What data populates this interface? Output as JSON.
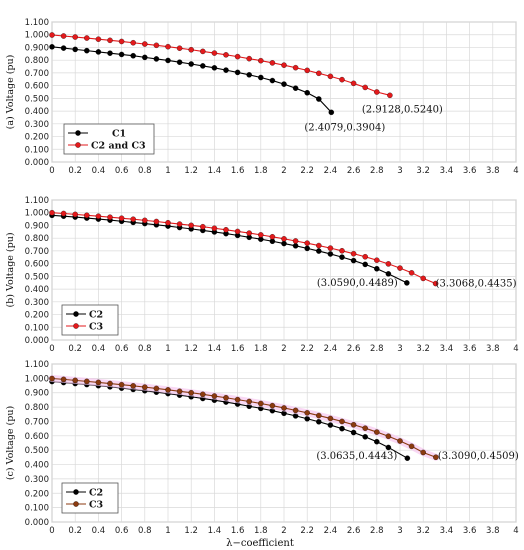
{
  "chart_data": [
    {
      "type": "line",
      "ylabel": "(a) Voltage (pu)",
      "xlabel": "",
      "xlim": [
        0,
        4
      ],
      "ylim": [
        0,
        1.1
      ],
      "xticks": [
        "0",
        "0.2",
        "0.4",
        "0.6",
        "0.8",
        "1",
        "1.2",
        "1.4",
        "1.6",
        "1.8",
        "2",
        "2.2",
        "2.4",
        "2.6",
        "2.8",
        "3",
        "3.2",
        "3.4",
        "3.6",
        "3.8",
        "4"
      ],
      "yticks": [
        "0.000",
        "0.100",
        "0.200",
        "0.300",
        "0.400",
        "0.500",
        "0.600",
        "0.700",
        "0.800",
        "0.900",
        "1.000",
        "1.100"
      ],
      "grid": true,
      "legend_position": "bottom-left",
      "series": [
        {
          "name": "C1",
          "color": "#000000",
          "x": [
            0,
            0.1,
            0.2,
            0.3,
            0.4,
            0.5,
            0.6,
            0.7,
            0.8,
            0.9,
            1.0,
            1.1,
            1.2,
            1.3,
            1.4,
            1.5,
            1.6,
            1.7,
            1.8,
            1.9,
            2.0,
            2.1,
            2.2,
            2.3,
            2.4079
          ],
          "y": [
            0.905,
            0.895,
            0.885,
            0.875,
            0.865,
            0.855,
            0.845,
            0.835,
            0.822,
            0.81,
            0.798,
            0.784,
            0.77,
            0.755,
            0.74,
            0.722,
            0.704,
            0.685,
            0.664,
            0.64,
            0.612,
            0.58,
            0.544,
            0.495,
            0.3904
          ]
        },
        {
          "name": "C2 and C3",
          "color": "#e31a1c",
          "x": [
            0,
            0.1,
            0.2,
            0.3,
            0.4,
            0.5,
            0.6,
            0.7,
            0.8,
            0.9,
            1.0,
            1.1,
            1.2,
            1.3,
            1.4,
            1.5,
            1.6,
            1.7,
            1.8,
            1.9,
            2.0,
            2.1,
            2.2,
            2.3,
            2.4,
            2.5,
            2.6,
            2.7,
            2.8,
            2.9128
          ],
          "y": [
            0.998,
            0.99,
            0.982,
            0.974,
            0.965,
            0.956,
            0.947,
            0.937,
            0.927,
            0.917,
            0.906,
            0.894,
            0.882,
            0.869,
            0.856,
            0.842,
            0.828,
            0.812,
            0.796,
            0.779,
            0.761,
            0.741,
            0.72,
            0.697,
            0.673,
            0.647,
            0.618,
            0.586,
            0.55,
            0.524
          ]
        }
      ],
      "annotations": [
        {
          "text": "(2.4079,0.3904)",
          "x": 2.4079,
          "y": 0.3904
        },
        {
          "text": "(2.9128,0.5240)",
          "x": 2.9128,
          "y": 0.524
        }
      ]
    },
    {
      "type": "line",
      "ylabel": "(b) Voltage (pu)",
      "xlabel": "",
      "xlim": [
        0,
        4
      ],
      "ylim": [
        0,
        1.1
      ],
      "xticks": [
        "0",
        "0.2",
        "0.4",
        "0.6",
        "0.8",
        "1",
        "1.2",
        "1.4",
        "1.6",
        "1.8",
        "2",
        "2.2",
        "2.4",
        "2.6",
        "2.8",
        "3",
        "3.2",
        "3.4",
        "3.6",
        "3.8",
        "4"
      ],
      "yticks": [
        "0.000",
        "0.100",
        "0.200",
        "0.300",
        "0.400",
        "0.500",
        "0.600",
        "0.700",
        "0.800",
        "0.900",
        "1.000",
        "1.100"
      ],
      "grid": true,
      "legend_position": "bottom-left",
      "series": [
        {
          "name": "C2",
          "color": "#000000",
          "x": [
            0,
            0.1,
            0.2,
            0.3,
            0.4,
            0.5,
            0.6,
            0.7,
            0.8,
            0.9,
            1.0,
            1.1,
            1.2,
            1.3,
            1.4,
            1.5,
            1.6,
            1.7,
            1.8,
            1.9,
            2.0,
            2.1,
            2.2,
            2.3,
            2.4,
            2.5,
            2.6,
            2.7,
            2.8,
            2.9,
            3.059
          ],
          "y": [
            0.98,
            0.973,
            0.966,
            0.958,
            0.95,
            0.942,
            0.933,
            0.924,
            0.915,
            0.905,
            0.895,
            0.884,
            0.873,
            0.861,
            0.849,
            0.836,
            0.822,
            0.807,
            0.792,
            0.776,
            0.758,
            0.74,
            0.72,
            0.699,
            0.676,
            0.651,
            0.624,
            0.594,
            0.56,
            0.52,
            0.4489
          ]
        },
        {
          "name": "C3",
          "color": "#e31a1c",
          "x": [
            0,
            0.1,
            0.2,
            0.3,
            0.4,
            0.5,
            0.6,
            0.7,
            0.8,
            0.9,
            1.0,
            1.1,
            1.2,
            1.3,
            1.4,
            1.5,
            1.6,
            1.7,
            1.8,
            1.9,
            2.0,
            2.1,
            2.2,
            2.3,
            2.4,
            2.5,
            2.6,
            2.7,
            2.8,
            2.9,
            3.0,
            3.1,
            3.2,
            3.3068
          ],
          "y": [
            1.0,
            0.994,
            0.987,
            0.98,
            0.973,
            0.965,
            0.957,
            0.949,
            0.94,
            0.931,
            0.921,
            0.911,
            0.901,
            0.89,
            0.878,
            0.866,
            0.853,
            0.84,
            0.826,
            0.811,
            0.795,
            0.778,
            0.761,
            0.742,
            0.722,
            0.701,
            0.678,
            0.654,
            0.627,
            0.598,
            0.565,
            0.528,
            0.484,
            0.4435
          ]
        }
      ],
      "annotations": [
        {
          "text": "(3.0590,0.4489)",
          "x": 3.059,
          "y": 0.4489
        },
        {
          "text": "(3.3068,0.4435)",
          "x": 3.3068,
          "y": 0.4435
        }
      ]
    },
    {
      "type": "line",
      "ylabel": "(c) Voltage (pu)",
      "xlabel": "λ−coefficient",
      "xlim": [
        0,
        4
      ],
      "ylim": [
        0,
        1.1
      ],
      "xticks": [
        "0",
        "0.2",
        "0.4",
        "0.6",
        "0.8",
        "1",
        "1.2",
        "1.4",
        "1.6",
        "1.8",
        "2",
        "2.2",
        "2.4",
        "2.6",
        "2.8",
        "3",
        "3.2",
        "3.4",
        "3.6",
        "3.8",
        "4"
      ],
      "yticks": [
        "0.000",
        "0.100",
        "0.200",
        "0.300",
        "0.400",
        "0.500",
        "0.600",
        "0.700",
        "0.800",
        "0.900",
        "1.000",
        "1.100"
      ],
      "grid": true,
      "legend_position": "bottom-left",
      "series": [
        {
          "name": "C2",
          "color": "#000000",
          "x": [
            0,
            0.1,
            0.2,
            0.3,
            0.4,
            0.5,
            0.6,
            0.7,
            0.8,
            0.9,
            1.0,
            1.1,
            1.2,
            1.3,
            1.4,
            1.5,
            1.6,
            1.7,
            1.8,
            1.9,
            2.0,
            2.1,
            2.2,
            2.3,
            2.4,
            2.5,
            2.6,
            2.7,
            2.8,
            2.9,
            3.0635
          ],
          "y": [
            0.978,
            0.971,
            0.964,
            0.957,
            0.949,
            0.941,
            0.932,
            0.923,
            0.914,
            0.904,
            0.894,
            0.883,
            0.872,
            0.86,
            0.848,
            0.835,
            0.821,
            0.806,
            0.791,
            0.775,
            0.757,
            0.739,
            0.719,
            0.698,
            0.675,
            0.65,
            0.623,
            0.593,
            0.559,
            0.519,
            0.4443
          ]
        },
        {
          "name": "C3",
          "color": "#8b3a0f",
          "x": [
            0,
            0.1,
            0.2,
            0.3,
            0.4,
            0.5,
            0.6,
            0.7,
            0.8,
            0.9,
            1.0,
            1.1,
            1.2,
            1.3,
            1.4,
            1.5,
            1.6,
            1.7,
            1.8,
            1.9,
            2.0,
            2.1,
            2.2,
            2.3,
            2.4,
            2.5,
            2.6,
            2.7,
            2.8,
            2.9,
            3.0,
            3.1,
            3.2,
            3.309
          ],
          "y": [
            0.999,
            0.993,
            0.986,
            0.979,
            0.972,
            0.964,
            0.956,
            0.948,
            0.939,
            0.93,
            0.92,
            0.91,
            0.9,
            0.889,
            0.877,
            0.865,
            0.852,
            0.839,
            0.825,
            0.81,
            0.794,
            0.777,
            0.76,
            0.741,
            0.721,
            0.7,
            0.677,
            0.653,
            0.626,
            0.597,
            0.564,
            0.527,
            0.484,
            0.4509
          ]
        }
      ],
      "annotations": [
        {
          "text": "(3.0635,0.4443)",
          "x": 3.0635,
          "y": 0.4443
        },
        {
          "text": "(3.3090,0.4509)",
          "x": 3.309,
          "y": 0.4509
        }
      ]
    }
  ]
}
